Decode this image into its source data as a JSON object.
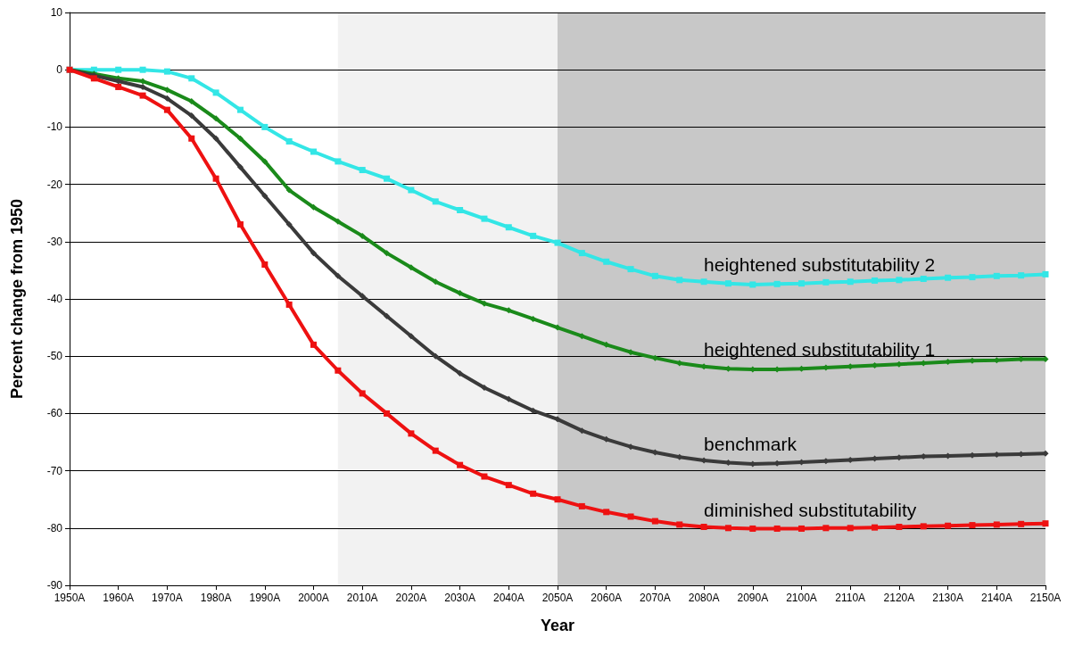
{
  "chart_data": {
    "type": "line",
    "xlabel": "Year",
    "ylabel": "Percent change from 1950",
    "x": [
      1950,
      1955,
      1960,
      1965,
      1970,
      1975,
      1980,
      1985,
      1990,
      1995,
      2000,
      2005,
      2010,
      2015,
      2020,
      2025,
      2030,
      2035,
      2040,
      2045,
      2050,
      2055,
      2060,
      2065,
      2070,
      2075,
      2080,
      2085,
      2090,
      2095,
      2100,
      2105,
      2110,
      2115,
      2120,
      2125,
      2130,
      2135,
      2140,
      2145,
      2150
    ],
    "series": [
      {
        "name": "heightened substitutability 2",
        "color": "#33e6e6",
        "marker": "square",
        "values": [
          0,
          0,
          0,
          0,
          -0.3,
          -1.5,
          -4,
          -7,
          -10,
          -12.5,
          -14.3,
          -16,
          -17.5,
          -19,
          -21,
          -23,
          -24.5,
          -26,
          -27.5,
          -29,
          -30.2,
          -32,
          -33.5,
          -34.8,
          -36,
          -36.7,
          -37,
          -37.3,
          -37.5,
          -37.4,
          -37.3,
          -37.1,
          -37,
          -36.8,
          -36.7,
          -36.5,
          -36.3,
          -36.2,
          -36,
          -35.9,
          -35.7
        ]
      },
      {
        "name": "heightened substitutability 1",
        "color": "#1a8a1a",
        "marker": "diamond",
        "values": [
          0,
          -0.7,
          -1.5,
          -2,
          -3.5,
          -5.5,
          -8.5,
          -12,
          -16,
          -21,
          -24,
          -26.5,
          -29,
          -32,
          -34.5,
          -37,
          -39,
          -40.8,
          -42,
          -43.5,
          -45,
          -46.5,
          -48,
          -49.3,
          -50.3,
          -51.2,
          -51.8,
          -52.2,
          -52.3,
          -52.3,
          -52.2,
          -52,
          -51.8,
          -51.6,
          -51.4,
          -51.2,
          -51,
          -50.8,
          -50.7,
          -50.5,
          -50.5
        ]
      },
      {
        "name": "benchmark",
        "color": "#3a3a3a",
        "marker": "diamond",
        "values": [
          0,
          -1,
          -2,
          -3,
          -5,
          -8,
          -12,
          -17,
          -22,
          -27,
          -32,
          -36,
          -39.5,
          -43,
          -46.5,
          -50,
          -53,
          -55.5,
          -57.5,
          -59.5,
          -61,
          -63,
          -64.5,
          -65.8,
          -66.8,
          -67.6,
          -68.2,
          -68.6,
          -68.8,
          -68.7,
          -68.5,
          -68.3,
          -68.1,
          -67.9,
          -67.7,
          -67.5,
          -67.4,
          -67.3,
          -67.2,
          -67.1,
          -67
        ]
      },
      {
        "name": "diminished substitutability",
        "color": "#ee1111",
        "marker": "square",
        "values": [
          0,
          -1.5,
          -3,
          -4.5,
          -7,
          -12,
          -19,
          -27,
          -34,
          -41,
          -48,
          -52.5,
          -56.5,
          -60,
          -63.5,
          -66.5,
          -69,
          -71,
          -72.5,
          -74,
          -75,
          -76.2,
          -77.2,
          -78,
          -78.8,
          -79.4,
          -79.8,
          -80,
          -80.1,
          -80.1,
          -80.1,
          -80,
          -80,
          -79.9,
          -79.8,
          -79.7,
          -79.6,
          -79.5,
          -79.4,
          -79.3,
          -79.2
        ]
      }
    ],
    "xlim": [
      1950,
      2150
    ],
    "xticks": [
      {
        "value": 1950,
        "label": "1950A"
      },
      {
        "value": 1960,
        "label": "1960A"
      },
      {
        "value": 1970,
        "label": "1970A"
      },
      {
        "value": 1980,
        "label": "1980A"
      },
      {
        "value": 1990,
        "label": "1990A"
      },
      {
        "value": 2000,
        "label": "2000A"
      },
      {
        "value": 2010,
        "label": "2010A"
      },
      {
        "value": 2020,
        "label": "2020A"
      },
      {
        "value": 2030,
        "label": "2030A"
      },
      {
        "value": 2040,
        "label": "2040A"
      },
      {
        "value": 2050,
        "label": "2050A"
      },
      {
        "value": 2060,
        "label": "2060A"
      },
      {
        "value": 2070,
        "label": "2070A"
      },
      {
        "value": 2080,
        "label": "2080A"
      },
      {
        "value": 2090,
        "label": "2090A"
      },
      {
        "value": 2100,
        "label": "2100A"
      },
      {
        "value": 2110,
        "label": "2110A"
      },
      {
        "value": 2120,
        "label": "2120A"
      },
      {
        "value": 2130,
        "label": "2130A"
      },
      {
        "value": 2140,
        "label": "2140A"
      },
      {
        "value": 2150,
        "label": "2150A"
      }
    ],
    "ylim": [
      -90,
      10
    ],
    "yticks": [
      -90,
      -80,
      -70,
      -60,
      -50,
      -40,
      -30,
      -20,
      -10,
      0,
      10
    ],
    "bands": [
      {
        "axis": "x",
        "from": 2005,
        "to": 2050,
        "color": "#f2f2f2"
      },
      {
        "axis": "x",
        "from": 2050,
        "to": 2150,
        "color": "#c8c8c8"
      }
    ],
    "grid": "y",
    "legend": false,
    "line_style": "solid"
  }
}
